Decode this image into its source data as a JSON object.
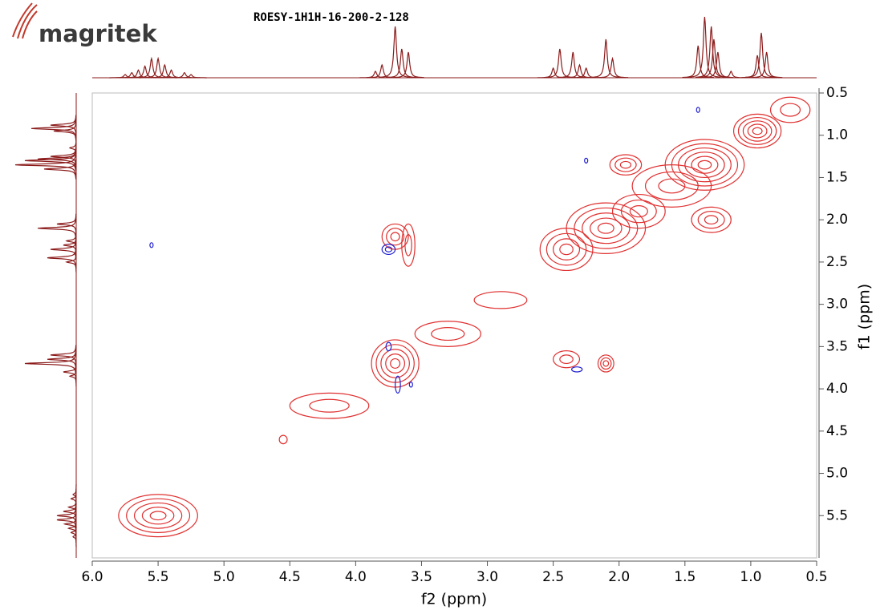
{
  "brand": "magritek",
  "chart_data": {
    "type": "contour",
    "title": "ROESY-1H1H-16-200-2-128",
    "x_label": "f2 (ppm)",
    "y_label": "f1 (ppm)",
    "xlim": [
      6.0,
      0.5
    ],
    "ylim": [
      6.0,
      0.5
    ],
    "xticks": [
      {
        "value": 6,
        "label": "6.0"
      },
      5.5,
      {
        "value": 5,
        "label": "5.0"
      },
      4.5,
      {
        "value": 4,
        "label": "4.0"
      },
      3.5,
      {
        "value": 3,
        "label": "3.0"
      },
      2.5,
      {
        "value": 2,
        "label": "2.0"
      },
      1.5,
      {
        "value": 1,
        "label": "1.0"
      },
      0.5
    ],
    "yticks": [
      0.5,
      {
        "value": 1,
        "label": "1.0"
      },
      1.5,
      {
        "value": 2,
        "label": "2.0"
      },
      2.5,
      {
        "value": 3,
        "label": "3.0"
      },
      3.5,
      {
        "value": 4,
        "label": "4.0"
      },
      4.5,
      {
        "value": 5,
        "label": "5.0"
      },
      5.5
    ],
    "series": [
      {
        "color": "#e03030",
        "x": [
          5.5,
          3.7,
          4.2,
          3.3,
          2.9,
          2.4,
          2.1,
          1.85,
          1.35,
          1.95,
          0.95,
          1.3,
          0.7,
          3.7,
          3.6,
          2.4,
          2.1,
          4.55,
          1.6
        ],
        "y": [
          5.5,
          3.7,
          4.2,
          3.35,
          2.95,
          2.35,
          2.1,
          1.9,
          1.35,
          1.35,
          0.95,
          2.0,
          0.7,
          2.2,
          2.3,
          3.65,
          3.7,
          4.6,
          1.6
        ],
        "wx": [
          0.3,
          0.18,
          0.3,
          0.25,
          0.2,
          0.2,
          0.3,
          0.2,
          0.3,
          0.12,
          0.18,
          0.15,
          0.15,
          0.1,
          0.05,
          0.1,
          0.06,
          0.03,
          0.3
        ],
        "wy": [
          0.25,
          0.28,
          0.15,
          0.15,
          0.1,
          0.25,
          0.3,
          0.2,
          0.3,
          0.12,
          0.2,
          0.15,
          0.15,
          0.15,
          0.25,
          0.1,
          0.1,
          0.05,
          0.25
        ],
        "levels": [
          5,
          5,
          2,
          2,
          1,
          4,
          5,
          3,
          6,
          3,
          5,
          3,
          2,
          3,
          2,
          2,
          3,
          1,
          3
        ]
      },
      {
        "color": "#2020d0",
        "x": [
          3.75,
          5.55,
          2.25,
          1.4,
          2.32,
          3.75,
          3.68,
          3.58
        ],
        "y": [
          2.35,
          2.3,
          1.3,
          0.7,
          3.77,
          3.5,
          3.95,
          3.95
        ],
        "wx": [
          0.05,
          0.01,
          0.01,
          0.01,
          0.04,
          0.02,
          0.02,
          0.01
        ],
        "wy": [
          0.06,
          0.02,
          0.02,
          0.03,
          0.03,
          0.05,
          0.1,
          0.03
        ],
        "levels": [
          2,
          1,
          1,
          1,
          1,
          1,
          1,
          1
        ]
      }
    ],
    "projection": {
      "color": "#8b1a1a",
      "x": [
        5.75,
        5.7,
        5.65,
        5.6,
        5.55,
        5.5,
        5.45,
        5.4,
        5.3,
        5.25,
        3.85,
        3.8,
        3.7,
        3.65,
        3.6,
        2.5,
        2.45,
        2.35,
        2.3,
        2.25,
        2.1,
        2.05,
        1.4,
        1.35,
        1.3,
        1.28,
        1.25,
        1.15,
        0.95,
        0.92,
        0.88
      ],
      "values": [
        5,
        8,
        12,
        18,
        30,
        30,
        20,
        12,
        8,
        5,
        10,
        20,
        80,
        45,
        40,
        15,
        45,
        40,
        20,
        15,
        60,
        30,
        50,
        95,
        80,
        60,
        40,
        10,
        35,
        70,
        40
      ]
    }
  }
}
